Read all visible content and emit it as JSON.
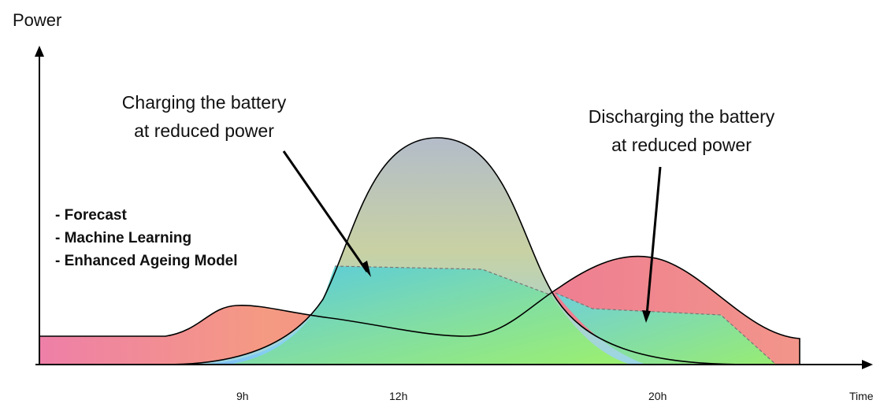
{
  "axes": {
    "y_label": "Power",
    "x_label": "Time",
    "x_ticks": [
      "9h",
      "12h",
      "20h"
    ]
  },
  "annotations": {
    "charging": [
      "Charging the battery",
      "at reduced power"
    ],
    "discharging": [
      "Discharging the battery",
      "at reduced power"
    ]
  },
  "features": [
    "- Forecast",
    "- Machine Learning",
    "- Enhanced Ageing Model"
  ],
  "colors": {
    "consumption_fill_start": "#ee7fa8",
    "consumption_fill_end": "#f2a07a",
    "production_fill_top": "#b7b0a8",
    "production_fill_bottom": "#7cc8f2",
    "battery_fill_start": "#4fc9d9",
    "battery_fill_end": "#8ff06a",
    "axis": "#000000"
  }
}
